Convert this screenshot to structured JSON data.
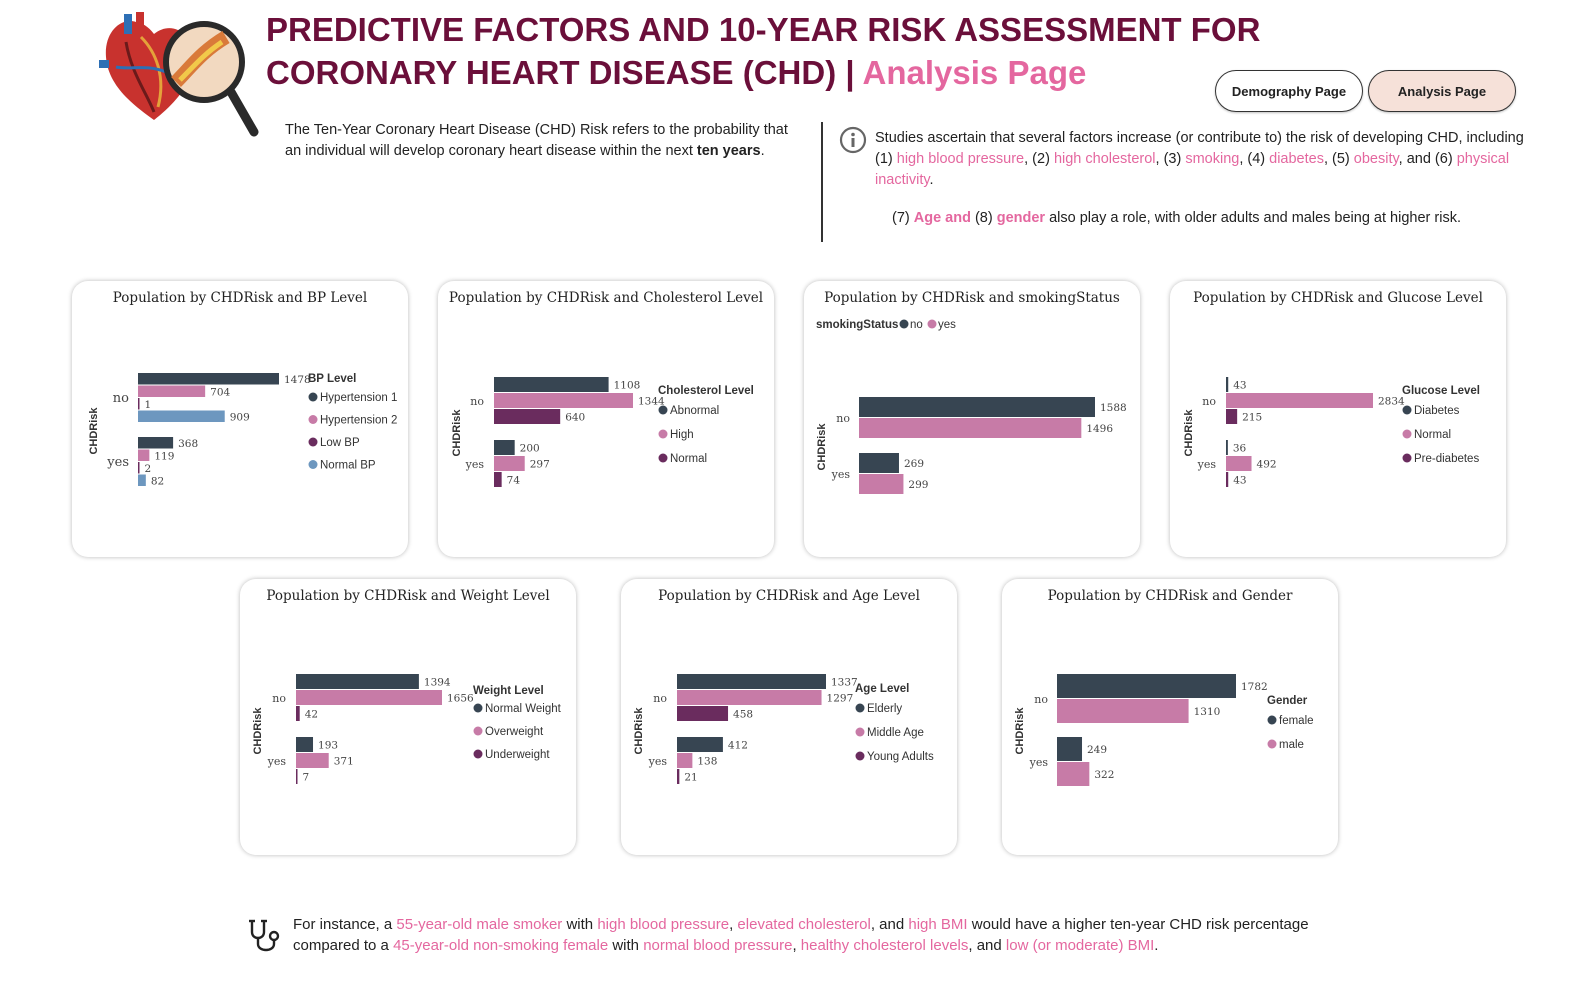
{
  "header": {
    "title_line1": "PREDICTIVE FACTORS AND 10-YEAR RISK ASSESSMENT FOR",
    "title_line2": "CORONARY HEART DISEASE (CHD) | ",
    "title_accent": "Analysis Page"
  },
  "nav": {
    "demography_label": "Demography Page",
    "analysis_label": "Analysis Page"
  },
  "intro": {
    "text": "The Ten-Year Coronary Heart Disease (CHD) Risk refers to the probability that an individual will develop coronary heart disease within the next ",
    "bold": "ten years",
    "end": "."
  },
  "studies": {
    "p1": "Studies ascertain that several factors increase (or contribute to) the risk of developing CHD, including (1) ",
    "f1": "high blood pressure",
    "s1": ", (2) ",
    "f2": "high cholesterol",
    "s2": ", (3) ",
    "f3": "smoking",
    "s3": ", (4) ",
    "f4": "diabetes",
    "s4": ", (5) ",
    "f5": "obesity",
    "s5": ", and (6) ",
    "f6": "physical inactivity",
    "s6": ".",
    "n7": "(7) ",
    "f7": "Age and",
    "n8": " (8) ",
    "f8": "gender",
    "rest": " also play a role, with older adults and males being at higher risk."
  },
  "footer": {
    "t1": "For instance, a ",
    "h1": "55-year-old male smoker",
    "t2": " with ",
    "h2": "high blood pressure",
    "t3": ", ",
    "h3": "elevated cholesterol",
    "t4": ", and ",
    "h4": "high BMI",
    "t5": " would have a higher ten-year CHD risk percentage compared to a ",
    "h5": "45-year-old non-smoking female",
    "t6": " with ",
    "h6": "normal blood pressure",
    "t7": ", ",
    "h7": "healthy cholesterol levels",
    "t8": ", and ",
    "h8": "low (or moderate) BMI",
    "t9": "."
  },
  "icons": {
    "logo": "heart-magnifier-icon",
    "info": "info-icon",
    "footer": "stethoscope-icon"
  },
  "colors": {
    "title": "#6b0f3a",
    "accent": "#e4679f",
    "dark": "#374552",
    "pink": "#c77ba7",
    "purple": "#6a2c5e",
    "steel": "#6d97bf"
  },
  "chart_data": [
    {
      "type": "bar",
      "title": "Population by CHDRisk and BP Level",
      "ylabel": "CHDRisk",
      "categories": [
        "no",
        "yes"
      ],
      "legend_title": "BP Level",
      "series": [
        {
          "name": "Hypertension 1",
          "color": "#374552",
          "values": [
            1478,
            368
          ]
        },
        {
          "name": "Hypertension 2",
          "color": "#c77ba7",
          "values": [
            704,
            119
          ]
        },
        {
          "name": "Low BP",
          "color": "#6a2c5e",
          "values": [
            1,
            2
          ]
        },
        {
          "name": "Normal BP",
          "color": "#6d97bf",
          "values": [
            909,
            82
          ]
        }
      ]
    },
    {
      "type": "bar",
      "title": "Population by CHDRisk and Cholesterol Level",
      "ylabel": "CHDRisk",
      "categories": [
        "no",
        "yes"
      ],
      "legend_title": "Cholesterol Level",
      "series": [
        {
          "name": "Abnormal",
          "color": "#374552",
          "values": [
            1108,
            200
          ]
        },
        {
          "name": "High",
          "color": "#c77ba7",
          "values": [
            1344,
            297
          ]
        },
        {
          "name": "Normal",
          "color": "#6a2c5e",
          "values": [
            640,
            74
          ]
        }
      ]
    },
    {
      "type": "bar",
      "title": "Population by CHDRisk and smokingStatus",
      "ylabel": "CHDRisk",
      "categories": [
        "no",
        "yes"
      ],
      "legend_title": "smokingStatus",
      "legend_position": "top",
      "series": [
        {
          "name": "no",
          "color": "#374552",
          "values": [
            1588,
            269
          ]
        },
        {
          "name": "yes",
          "color": "#c77ba7",
          "values": [
            1496,
            299
          ]
        }
      ]
    },
    {
      "type": "bar",
      "title": "Population by CHDRisk and Glucose Level",
      "ylabel": "CHDRisk",
      "categories": [
        "no",
        "yes"
      ],
      "legend_title": "Glucose Level",
      "series": [
        {
          "name": "Diabetes",
          "color": "#374552",
          "values": [
            43,
            36
          ]
        },
        {
          "name": "Normal",
          "color": "#c77ba7",
          "values": [
            2834,
            492
          ]
        },
        {
          "name": "Pre-diabetes",
          "color": "#6a2c5e",
          "values": [
            215,
            43
          ]
        }
      ]
    },
    {
      "type": "bar",
      "title": "Population by CHDRisk and Weight Level",
      "ylabel": "CHDRisk",
      "categories": [
        "no",
        "yes"
      ],
      "legend_title": "Weight Level",
      "series": [
        {
          "name": "Normal Weight",
          "color": "#374552",
          "values": [
            1394,
            193
          ]
        },
        {
          "name": "Overweight",
          "color": "#c77ba7",
          "values": [
            1656,
            371
          ]
        },
        {
          "name": "Underweight",
          "color": "#6a2c5e",
          "values": [
            42,
            7
          ]
        }
      ]
    },
    {
      "type": "bar",
      "title": "Population by CHDRisk and Age Level",
      "ylabel": "CHDRisk",
      "categories": [
        "no",
        "yes"
      ],
      "legend_title": "Age Level",
      "series": [
        {
          "name": "Elderly",
          "color": "#374552",
          "values": [
            1337,
            412
          ]
        },
        {
          "name": "Middle Age",
          "color": "#c77ba7",
          "values": [
            1297,
            138
          ]
        },
        {
          "name": "Young Adults",
          "color": "#6a2c5e",
          "values": [
            458,
            21
          ]
        }
      ]
    },
    {
      "type": "bar",
      "title": "Population by CHDRisk and Gender",
      "ylabel": "CHDRisk",
      "categories": [
        "no",
        "yes"
      ],
      "legend_title": "Gender",
      "series": [
        {
          "name": "female",
          "color": "#374552",
          "values": [
            1782,
            249
          ]
        },
        {
          "name": "male",
          "color": "#c77ba7",
          "values": [
            1310,
            322
          ]
        }
      ]
    }
  ]
}
